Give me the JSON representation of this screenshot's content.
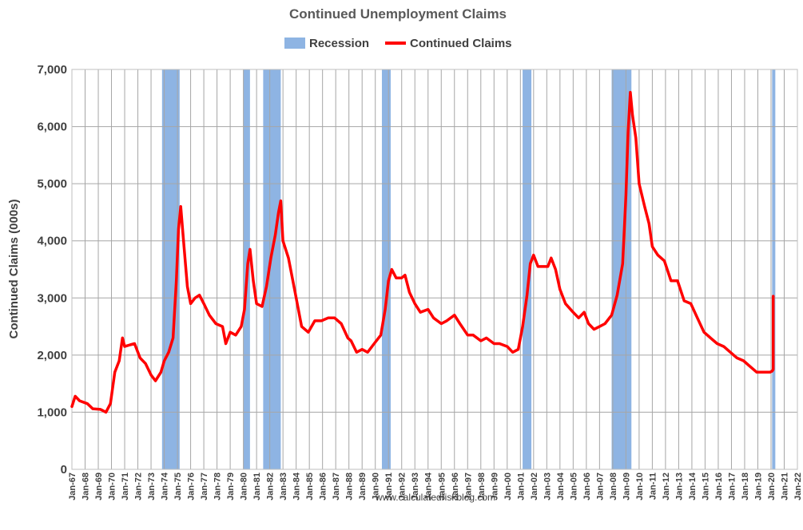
{
  "chart_data": {
    "type": "line",
    "title": "Continued Unemployment Claims",
    "ylabel": "Continued Claims (000s)",
    "xlabel": "",
    "ylim": [
      0,
      7000
    ],
    "xlim": [
      "Jan-67",
      "Jan-22"
    ],
    "grid": true,
    "legend_position": "top-center",
    "yticks": [
      "0",
      "1,000",
      "2,000",
      "3,000",
      "4,000",
      "5,000",
      "6,000",
      "7,000"
    ],
    "xticks": [
      "Jan-67",
      "Jan-68",
      "Jan-69",
      "Jan-70",
      "Jan-71",
      "Jan-72",
      "Jan-73",
      "Jan-74",
      "Jan-75",
      "Jan-76",
      "Jan-77",
      "Jan-78",
      "Jan-79",
      "Jan-80",
      "Jan-81",
      "Jan-82",
      "Jan-83",
      "Jan-84",
      "Jan-85",
      "Jan-86",
      "Jan-87",
      "Jan-88",
      "Jan-89",
      "Jan-90",
      "Jan-91",
      "Jan-92",
      "Jan-93",
      "Jan-94",
      "Jan-95",
      "Jan-96",
      "Jan-97",
      "Jan-98",
      "Jan-99",
      "Jan-00",
      "Jan-01",
      "Jan-02",
      "Jan-03",
      "Jan-04",
      "Jan-05",
      "Jan-06",
      "Jan-07",
      "Jan-08",
      "Jan-09",
      "Jan-10",
      "Jan-11",
      "Jan-12",
      "Jan-13",
      "Jan-14",
      "Jan-15",
      "Jan-16",
      "Jan-17",
      "Jan-18",
      "Jan-19",
      "Jan-20",
      "Jan-21",
      "Jan-22"
    ],
    "legend": {
      "recession_label": "Recession",
      "series_label": "Continued Claims",
      "recession_color": "#8EB4E3",
      "series_color": "#FF0000"
    },
    "recessions": [
      {
        "start": "1973-11",
        "end": "1975-03"
      },
      {
        "start": "1980-01",
        "end": "1980-07"
      },
      {
        "start": "1981-07",
        "end": "1982-11"
      },
      {
        "start": "1990-07",
        "end": "1991-03"
      },
      {
        "start": "2001-03",
        "end": "2001-11"
      },
      {
        "start": "2007-12",
        "end": "2009-06"
      },
      {
        "start": "2020-02",
        "end": "2020-04"
      }
    ],
    "series": [
      {
        "name": "Continued Claims",
        "points": [
          [
            "1967-01",
            1100
          ],
          [
            "1967-04",
            1280
          ],
          [
            "1967-08",
            1200
          ],
          [
            "1968-03",
            1150
          ],
          [
            "1968-08",
            1060
          ],
          [
            "1969-03",
            1050
          ],
          [
            "1969-08",
            1000
          ],
          [
            "1969-12",
            1150
          ],
          [
            "1970-04",
            1700
          ],
          [
            "1970-08",
            1900
          ],
          [
            "1970-11",
            2300
          ],
          [
            "1971-01",
            2150
          ],
          [
            "1971-06",
            2180
          ],
          [
            "1971-10",
            2200
          ],
          [
            "1972-03",
            1950
          ],
          [
            "1972-08",
            1850
          ],
          [
            "1973-01",
            1650
          ],
          [
            "1973-05",
            1550
          ],
          [
            "1973-10",
            1700
          ],
          [
            "1974-01",
            1900
          ],
          [
            "1974-05",
            2050
          ],
          [
            "1974-09",
            2300
          ],
          [
            "1974-12",
            3300
          ],
          [
            "1975-02",
            4200
          ],
          [
            "1975-04",
            4600
          ],
          [
            "1975-07",
            3900
          ],
          [
            "1975-10",
            3200
          ],
          [
            "1976-01",
            2900
          ],
          [
            "1976-05",
            3000
          ],
          [
            "1976-09",
            3050
          ],
          [
            "1977-01",
            2900
          ],
          [
            "1977-06",
            2700
          ],
          [
            "1977-12",
            2550
          ],
          [
            "1978-06",
            2500
          ],
          [
            "1978-09",
            2200
          ],
          [
            "1979-01",
            2400
          ],
          [
            "1979-06",
            2350
          ],
          [
            "1979-11",
            2500
          ],
          [
            "1980-02",
            2800
          ],
          [
            "1980-05",
            3600
          ],
          [
            "1980-07",
            3850
          ],
          [
            "1980-10",
            3300
          ],
          [
            "1981-01",
            2900
          ],
          [
            "1981-06",
            2850
          ],
          [
            "1981-10",
            3200
          ],
          [
            "1982-02",
            3700
          ],
          [
            "1982-06",
            4100
          ],
          [
            "1982-09",
            4500
          ],
          [
            "1982-11",
            4700
          ],
          [
            "1983-01",
            4000
          ],
          [
            "1983-06",
            3700
          ],
          [
            "1983-12",
            3100
          ],
          [
            "1984-06",
            2500
          ],
          [
            "1984-12",
            2400
          ],
          [
            "1985-06",
            2600
          ],
          [
            "1985-12",
            2600
          ],
          [
            "1986-06",
            2650
          ],
          [
            "1986-12",
            2650
          ],
          [
            "1987-06",
            2550
          ],
          [
            "1987-12",
            2300
          ],
          [
            "1988-03",
            2250
          ],
          [
            "1988-08",
            2050
          ],
          [
            "1989-01",
            2100
          ],
          [
            "1989-06",
            2050
          ],
          [
            "1989-12",
            2200
          ],
          [
            "1990-06",
            2350
          ],
          [
            "1990-10",
            2800
          ],
          [
            "1991-01",
            3300
          ],
          [
            "1991-04",
            3500
          ],
          [
            "1991-08",
            3350
          ],
          [
            "1992-01",
            3350
          ],
          [
            "1992-04",
            3400
          ],
          [
            "1992-08",
            3100
          ],
          [
            "1993-01",
            2900
          ],
          [
            "1993-06",
            2750
          ],
          [
            "1994-01",
            2800
          ],
          [
            "1994-06",
            2650
          ],
          [
            "1995-01",
            2550
          ],
          [
            "1995-06",
            2600
          ],
          [
            "1996-01",
            2700
          ],
          [
            "1996-06",
            2550
          ],
          [
            "1997-01",
            2350
          ],
          [
            "1997-06",
            2350
          ],
          [
            "1998-01",
            2250
          ],
          [
            "1998-06",
            2300
          ],
          [
            "1999-01",
            2200
          ],
          [
            "1999-06",
            2200
          ],
          [
            "2000-01",
            2150
          ],
          [
            "2000-06",
            2050
          ],
          [
            "2000-11",
            2100
          ],
          [
            "2001-03",
            2500
          ],
          [
            "2001-07",
            3050
          ],
          [
            "2001-10",
            3600
          ],
          [
            "2002-01",
            3750
          ],
          [
            "2002-05",
            3550
          ],
          [
            "2002-09",
            3550
          ],
          [
            "2003-02",
            3550
          ],
          [
            "2003-05",
            3700
          ],
          [
            "2003-09",
            3500
          ],
          [
            "2004-01",
            3150
          ],
          [
            "2004-06",
            2900
          ],
          [
            "2005-01",
            2750
          ],
          [
            "2005-06",
            2650
          ],
          [
            "2005-11",
            2750
          ],
          [
            "2006-03",
            2550
          ],
          [
            "2006-08",
            2450
          ],
          [
            "2007-01",
            2500
          ],
          [
            "2007-06",
            2550
          ],
          [
            "2007-12",
            2700
          ],
          [
            "2008-05",
            3050
          ],
          [
            "2008-10",
            3600
          ],
          [
            "2009-01",
            4800
          ],
          [
            "2009-03",
            5900
          ],
          [
            "2009-05",
            6600
          ],
          [
            "2009-07",
            6200
          ],
          [
            "2009-10",
            5800
          ],
          [
            "2010-01",
            5000
          ],
          [
            "2010-06",
            4600
          ],
          [
            "2010-10",
            4300
          ],
          [
            "2011-01",
            3900
          ],
          [
            "2011-06",
            3750
          ],
          [
            "2011-12",
            3650
          ],
          [
            "2012-06",
            3300
          ],
          [
            "2012-12",
            3300
          ],
          [
            "2013-06",
            2950
          ],
          [
            "2013-12",
            2900
          ],
          [
            "2014-06",
            2650
          ],
          [
            "2014-12",
            2400
          ],
          [
            "2015-06",
            2300
          ],
          [
            "2015-12",
            2200
          ],
          [
            "2016-06",
            2150
          ],
          [
            "2016-12",
            2050
          ],
          [
            "2017-06",
            1950
          ],
          [
            "2017-12",
            1900
          ],
          [
            "2018-06",
            1800
          ],
          [
            "2018-12",
            1700
          ],
          [
            "2019-06",
            1700
          ],
          [
            "2019-12",
            1700
          ],
          [
            "2020-02",
            1720
          ],
          [
            "2020-03",
            1750
          ],
          [
            "2020-03",
            3030
          ]
        ]
      }
    ],
    "source_text": "www.calculatedriskblog.com"
  }
}
